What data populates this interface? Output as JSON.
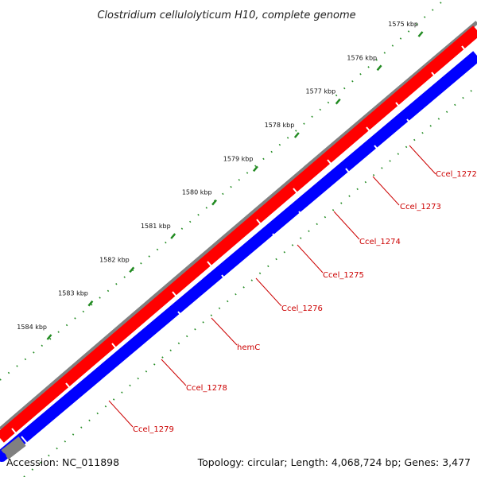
{
  "title": "Clostridium cellulolyticum H10, complete genome",
  "footer": {
    "accession": "Accession: NC_011898",
    "summary": "Topology: circular; Length: 4,068,724 bp; Genes: 3,477"
  },
  "colors": {
    "backbone": "#808080",
    "forward_strand": "#ff0000",
    "reverse_strand": "#0000ff",
    "ruler_ticks": "#228b22",
    "gene_labels": "#cc0000"
  },
  "ruler": {
    "ticks": [
      {
        "kbp": 1575,
        "label": "1575 kbp"
      },
      {
        "kbp": 1576,
        "label": "1576 kbp"
      },
      {
        "kbp": 1577,
        "label": "1577 kbp"
      },
      {
        "kbp": 1578,
        "label": "1578 kbp"
      },
      {
        "kbp": 1579,
        "label": "1579 kbp"
      },
      {
        "kbp": 1580,
        "label": "1580 kbp"
      },
      {
        "kbp": 1581,
        "label": "1581 kbp"
      },
      {
        "kbp": 1582,
        "label": "1582 kbp"
      },
      {
        "kbp": 1583,
        "label": "1583 kbp"
      },
      {
        "kbp": 1584,
        "label": "1584 kbp"
      }
    ]
  },
  "genes": [
    {
      "label": "Ccel_1272"
    },
    {
      "label": "Ccel_1273"
    },
    {
      "label": "Ccel_1274"
    },
    {
      "label": "Ccel_1275"
    },
    {
      "label": "Ccel_1276"
    },
    {
      "label": "hemC"
    },
    {
      "label": "Ccel_1278"
    },
    {
      "label": "Ccel_1279"
    }
  ]
}
